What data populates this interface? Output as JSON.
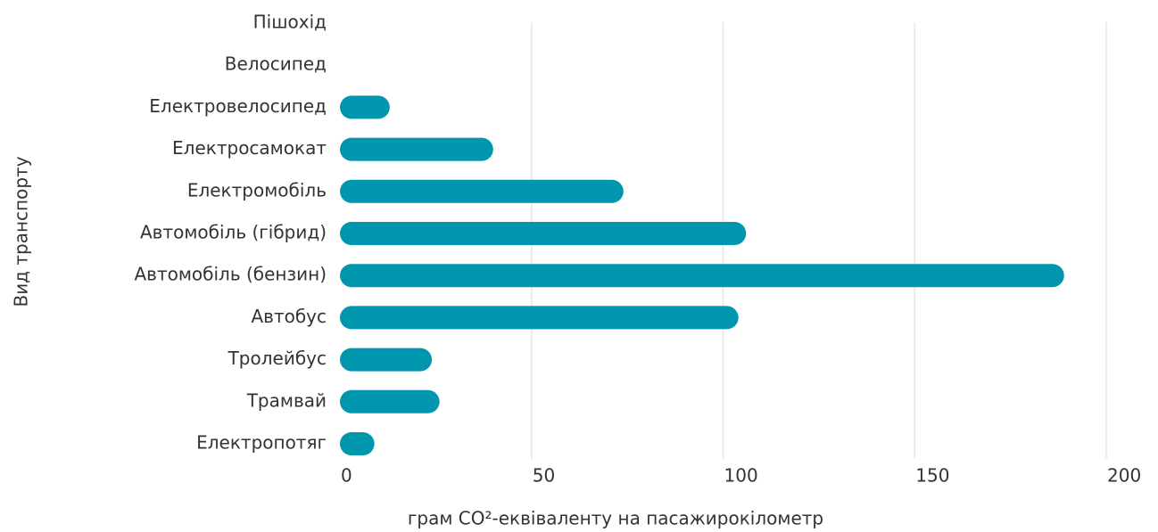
{
  "chart_data": {
    "type": "bar",
    "orientation": "horizontal",
    "xlabel": "грам CO²-еквіваленту на пасажирокілометр",
    "ylabel": "Вид транспорту",
    "categories": [
      "Пішохід",
      "Велосипед",
      "Електровелосипед",
      "Електросамокат",
      "Електромобіль",
      "Автомобіль (гібрид)",
      "Автомобіль (бензин)",
      "Автобус",
      "Тролейбус",
      "Трамвай",
      "Електропотяг"
    ],
    "values": [
      0,
      0,
      13,
      40,
      74,
      106,
      189,
      104,
      24,
      26,
      9
    ],
    "color": "#0097ae",
    "xlim": [
      0,
      200
    ],
    "xticks": [
      0,
      50,
      100,
      150,
      200
    ],
    "grid": true
  }
}
